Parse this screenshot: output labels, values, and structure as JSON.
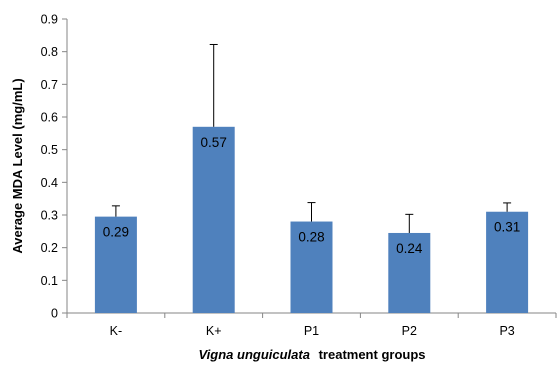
{
  "chart_data": {
    "type": "bar",
    "title": "",
    "categories": [
      "K-",
      "K+",
      "P1",
      "P2",
      "P3"
    ],
    "series": [
      {
        "values": [
          0.295,
          0.57,
          0.28,
          0.245,
          0.31
        ],
        "data_labels": [
          "0.29",
          "0.57",
          "0.28",
          "0.24",
          "0.31"
        ],
        "error_upper": [
          0.033,
          0.252,
          0.058,
          0.057,
          0.027
        ]
      }
    ],
    "ylabel": "Average MDA Level (mg/mL)",
    "xlabel_italic": "Vigna unguiculata",
    "xlabel_rest": "treatment groups",
    "ylim": [
      0,
      0.9
    ],
    "yticks": [
      "0",
      "0.1",
      "0.2",
      "0.3",
      "0.4",
      "0.5",
      "0.6",
      "0.7",
      "0.8",
      "0.9"
    ],
    "grid": false,
    "legend": "none",
    "bar_color": "#4f81bd",
    "error_bar_color": "#000000"
  }
}
